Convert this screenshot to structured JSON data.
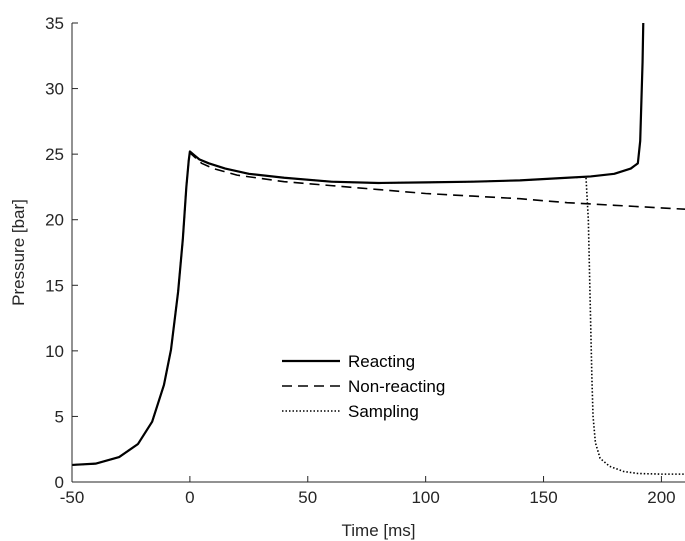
{
  "chart_data": {
    "type": "line",
    "title": "",
    "xlabel": "Time [ms]",
    "ylabel": "Pressure [bar]",
    "xlim": [
      -50,
      210
    ],
    "ylim": [
      0,
      35
    ],
    "xticks": [
      -50,
      0,
      50,
      100,
      150,
      200
    ],
    "yticks": [
      0,
      5,
      10,
      15,
      20,
      25,
      30,
      35
    ],
    "grid": false,
    "legend_position": "lower-center",
    "series": [
      {
        "name": "Reacting",
        "style": "solid",
        "color": "#000000",
        "points": [
          [
            -50,
            1.3
          ],
          [
            -40,
            1.4
          ],
          [
            -30,
            1.9
          ],
          [
            -22,
            2.9
          ],
          [
            -16,
            4.6
          ],
          [
            -11,
            7.4
          ],
          [
            -8,
            10.1
          ],
          [
            -5,
            14.5
          ],
          [
            -3,
            18.5
          ],
          [
            -1.5,
            22.5
          ],
          [
            -0.5,
            24.5
          ],
          [
            0,
            25.2
          ],
          [
            2,
            24.9
          ],
          [
            4,
            24.6
          ],
          [
            8,
            24.3
          ],
          [
            15,
            23.9
          ],
          [
            25,
            23.5
          ],
          [
            40,
            23.2
          ],
          [
            60,
            22.9
          ],
          [
            80,
            22.8
          ],
          [
            100,
            22.85
          ],
          [
            120,
            22.9
          ],
          [
            140,
            23.0
          ],
          [
            160,
            23.2
          ],
          [
            170,
            23.3
          ],
          [
            180,
            23.5
          ],
          [
            187,
            23.9
          ],
          [
            190,
            24.3
          ],
          [
            191,
            26
          ],
          [
            191.5,
            29
          ],
          [
            192,
            32
          ],
          [
            192.3,
            35
          ]
        ]
      },
      {
        "name": "Non-reacting",
        "style": "dashed",
        "color": "#000000",
        "points": [
          [
            -50,
            1.3
          ],
          [
            -40,
            1.4
          ],
          [
            -30,
            1.9
          ],
          [
            -22,
            2.9
          ],
          [
            -16,
            4.6
          ],
          [
            -11,
            7.4
          ],
          [
            -8,
            10.1
          ],
          [
            -5,
            14.5
          ],
          [
            -3,
            18.5
          ],
          [
            -1.5,
            22.5
          ],
          [
            -0.5,
            24.5
          ],
          [
            0,
            25.1
          ],
          [
            5,
            24.3
          ],
          [
            10,
            23.9
          ],
          [
            20,
            23.4
          ],
          [
            40,
            22.9
          ],
          [
            60,
            22.6
          ],
          [
            80,
            22.3
          ],
          [
            100,
            22.0
          ],
          [
            120,
            21.8
          ],
          [
            140,
            21.6
          ],
          [
            160,
            21.3
          ],
          [
            180,
            21.1
          ],
          [
            200,
            20.9
          ],
          [
            210,
            20.8
          ]
        ]
      },
      {
        "name": "Sampling",
        "style": "dotted",
        "color": "#000000",
        "points": [
          [
            -50,
            1.3
          ],
          [
            -40,
            1.4
          ],
          [
            -30,
            1.9
          ],
          [
            -22,
            2.9
          ],
          [
            -16,
            4.6
          ],
          [
            -11,
            7.4
          ],
          [
            -8,
            10.1
          ],
          [
            -5,
            14.5
          ],
          [
            -3,
            18.5
          ],
          [
            -1.5,
            22.5
          ],
          [
            -0.5,
            24.5
          ],
          [
            0,
            25.2
          ],
          [
            2,
            24.9
          ],
          [
            4,
            24.6
          ],
          [
            8,
            24.3
          ],
          [
            15,
            23.9
          ],
          [
            25,
            23.5
          ],
          [
            40,
            23.2
          ],
          [
            60,
            22.9
          ],
          [
            80,
            22.8
          ],
          [
            100,
            22.85
          ],
          [
            120,
            22.9
          ],
          [
            140,
            23.0
          ],
          [
            160,
            23.2
          ],
          [
            168,
            23.25
          ],
          [
            169,
            20
          ],
          [
            169.5,
            16
          ],
          [
            170,
            12
          ],
          [
            170.5,
            8
          ],
          [
            171,
            5
          ],
          [
            172,
            3
          ],
          [
            174,
            1.8
          ],
          [
            178,
            1.2
          ],
          [
            184,
            0.8
          ],
          [
            190,
            0.65
          ],
          [
            200,
            0.6
          ],
          [
            210,
            0.6
          ]
        ]
      }
    ]
  }
}
